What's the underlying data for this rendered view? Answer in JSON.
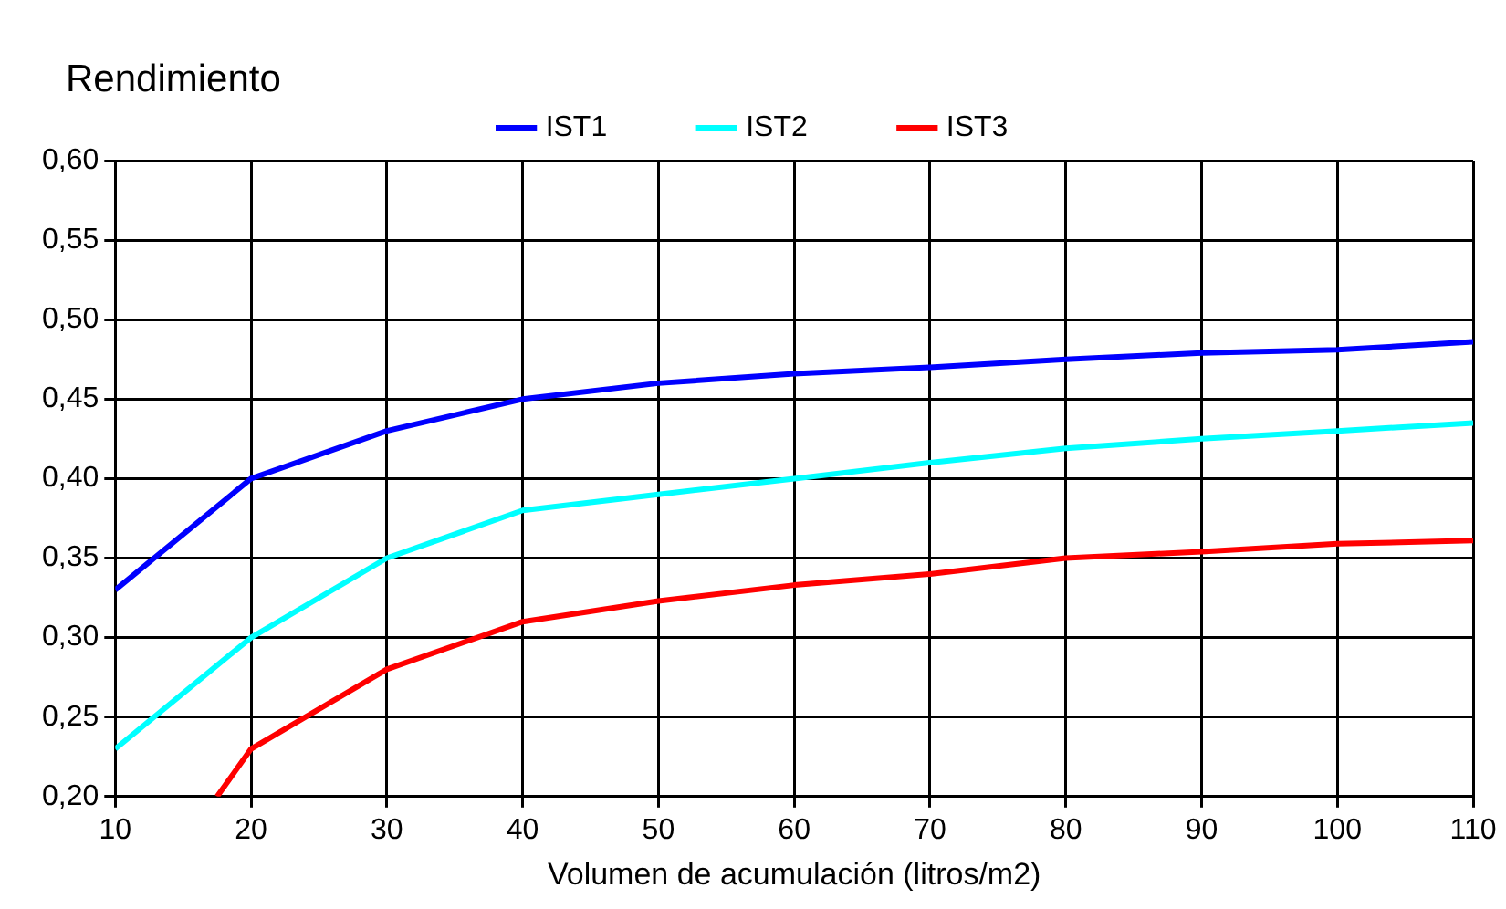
{
  "chart_data": {
    "type": "line",
    "title": "Rendimiento",
    "xlabel": "Volumen de acumulación (litros/m2)",
    "xlim": [
      10,
      110
    ],
    "xticks": [
      10,
      20,
      30,
      40,
      50,
      60,
      70,
      80,
      90,
      100,
      110
    ],
    "ylim": [
      0.2,
      0.6
    ],
    "yticks": [
      {
        "value": 0.2,
        "label": "0,20"
      },
      {
        "value": 0.25,
        "label": "0,25"
      },
      {
        "value": 0.3,
        "label": "0,30"
      },
      {
        "value": 0.35,
        "label": "0,35"
      },
      {
        "value": 0.4,
        "label": "0,40"
      },
      {
        "value": 0.45,
        "label": "0,45"
      },
      {
        "value": 0.5,
        "label": "0,50"
      },
      {
        "value": 0.55,
        "label": "0,55"
      },
      {
        "value": 0.6,
        "label": "0,60"
      }
    ],
    "x": [
      10,
      20,
      30,
      40,
      50,
      60,
      70,
      80,
      90,
      100,
      110
    ],
    "series": [
      {
        "name": "IST1",
        "color": "#0000ff",
        "values": [
          0.33,
          0.4,
          0.43,
          0.45,
          0.46,
          0.466,
          0.47,
          0.475,
          0.479,
          0.481,
          0.486
        ]
      },
      {
        "name": "IST2",
        "color": "#00ffff",
        "values": [
          0.23,
          0.3,
          0.35,
          0.38,
          0.39,
          0.4,
          0.41,
          0.419,
          0.425,
          0.43,
          0.435
        ]
      },
      {
        "name": "IST3",
        "color": "#ff0000",
        "x": [
          17.5,
          20,
          30,
          40,
          50,
          60,
          70,
          80,
          90,
          100,
          110
        ],
        "values": [
          0.2,
          0.23,
          0.28,
          0.31,
          0.323,
          0.333,
          0.34,
          0.35,
          0.354,
          0.359,
          0.361
        ]
      }
    ],
    "grid": true,
    "legend": "top",
    "marker": "none",
    "line_style": "solid"
  }
}
